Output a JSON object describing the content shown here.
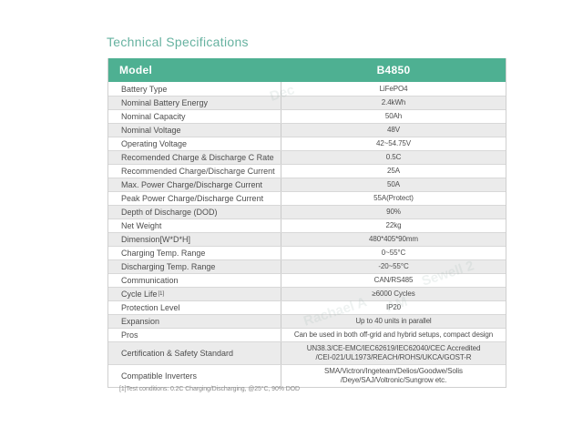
{
  "title": "Technical Specifications",
  "table": {
    "header": {
      "model_label": "Model",
      "model_value": "B4850"
    },
    "rows": [
      {
        "label": "Battery Type",
        "value": "LiFePO4"
      },
      {
        "label": "Nominal Battery Energy",
        "value": "2.4kWh"
      },
      {
        "label": "Nominal Capacity",
        "value": "50Ah"
      },
      {
        "label": "Nominal Voltage",
        "value": "48V"
      },
      {
        "label": "Operating Voltage",
        "value": "42~54.75V"
      },
      {
        "label": "Recomended Charge & Discharge C Rate",
        "value": "0.5C"
      },
      {
        "label": "Recommended Charge/Discharge Current",
        "value": "25A"
      },
      {
        "label": "Max. Power Charge/Discharge Current",
        "value": "50A"
      },
      {
        "label": "Peak Power Charge/Discharge Current",
        "value": "55A(Protect)"
      },
      {
        "label": "Depth of Discharge (DOD)",
        "value": "90%"
      },
      {
        "label": "Net Weight",
        "value": "22kg"
      },
      {
        "label": "Dimension[W*D*H]",
        "value": "480*405*90mm"
      },
      {
        "label": "Charging Temp. Range",
        "value": "0~55°C"
      },
      {
        "label": "Discharging Temp. Range",
        "value": "-20~55°C"
      },
      {
        "label": "Communication",
        "value": "CAN/RS485"
      },
      {
        "label": "Cycle Life",
        "label_sup": "[1]",
        "value": "≥6000 Cycles"
      },
      {
        "label": "Protection Level",
        "value": "IP20"
      },
      {
        "label": "Expansion",
        "value": "Up to 40 units in parallel"
      },
      {
        "label": "Pros",
        "value": "Can be used in both off-grid and hybrid setups, compact design"
      },
      {
        "label": "Certification & Safety Standard",
        "value": "UN38.3/CE-EMC/IEC62619/IEC62040/CEC Accredited\n/CEI-021/UL1973/REACH/ROHS/UKCA/GOST-R"
      },
      {
        "label": "Compatible Inverters",
        "value": "SMA/Victron/Ingeteam/Delios/Goodwe/Solis\n/Deye/SAJ/Voltronic/Sungrow etc."
      }
    ],
    "footnote": "[1]Test conditions: 0.2C Charging/Discharging, @25°C, 90% DOD"
  },
  "colors": {
    "header_bg": "#4eb092",
    "title": "#66b2a0",
    "row_alt": "#ebebeb"
  },
  "watermark": {
    "fragments": [
      "Dec",
      "Rachael A",
      "AM",
      "Sewell 2"
    ]
  }
}
